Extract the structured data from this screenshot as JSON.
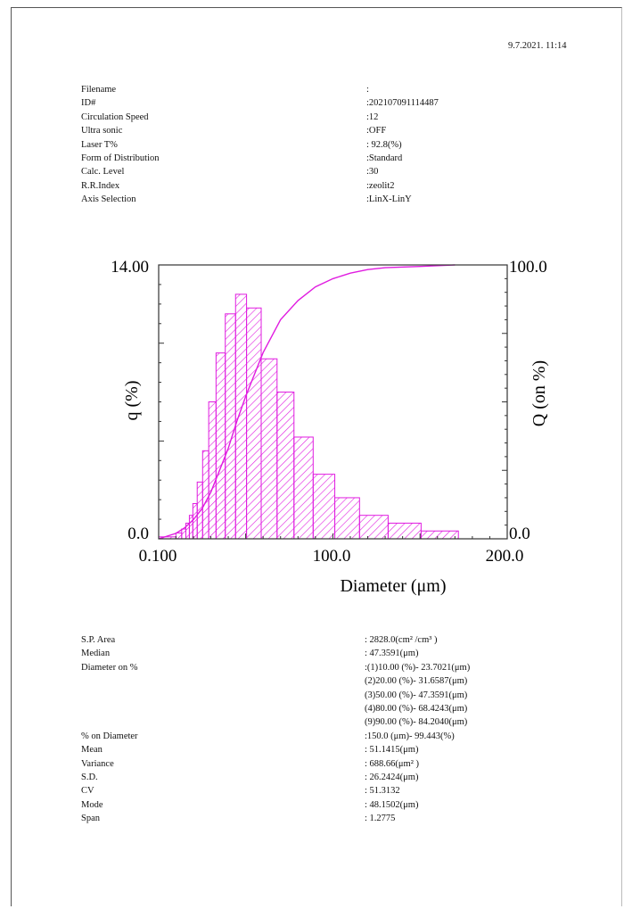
{
  "timestamp": "9.7.2021. 11:14",
  "params": [
    {
      "label": "Filename",
      "value": ":"
    },
    {
      "label": "ID#",
      "value": ":202107091114487"
    },
    {
      "label": "Circulation Speed",
      "value": ":12"
    },
    {
      "label": "Ultra sonic",
      "value": ":OFF"
    },
    {
      "label": "Laser T%",
      "value": ": 92.8(%)"
    },
    {
      "label": "Form of Distribution",
      "value": ":Standard"
    },
    {
      "label": "Calc. Level",
      "value": ":30"
    },
    {
      "label": "R.R.Index",
      "value": ":zeolit2"
    },
    {
      "label": "Axis Selection",
      "value": ":LinX-LinY"
    }
  ],
  "results": [
    {
      "label": "S.P. Area",
      "value": ":  2828.0(cm² /cm³ )"
    },
    {
      "label": "Median",
      "value": ": 47.3591(μm)"
    },
    {
      "label": "Diameter on %",
      "value": ":(1)10.00 (%)-  23.7021(μm)"
    },
    {
      "label": "",
      "value": "  (2)20.00 (%)-  31.6587(μm)"
    },
    {
      "label": "",
      "value": "  (3)50.00 (%)-  47.3591(μm)"
    },
    {
      "label": "",
      "value": "  (4)80.00 (%)-  68.4243(μm)"
    },
    {
      "label": "",
      "value": "  (9)90.00 (%)-  84.2040(μm)"
    },
    {
      "label": "% on Diameter",
      "value": ":150.0 (μm)-  99.443(%)"
    },
    {
      "label": "Mean",
      "value": ": 51.1415(μm)"
    },
    {
      "label": "Variance",
      "value": ":  688.66(μm² )"
    },
    {
      "label": "S.D.",
      "value": ": 26.2424(μm)"
    },
    {
      "label": "CV",
      "value": ": 51.3132"
    },
    {
      "label": "Mode",
      "value": ": 48.1502(μm)"
    },
    {
      "label": "Span",
      "value": ":  1.2775"
    }
  ],
  "colors": {
    "series": "#e01ce0",
    "axis": "#333333"
  },
  "chart_data": {
    "type": "bar",
    "title": "",
    "xlabel": "Diameter (μm)",
    "ylabel": "q (%)",
    "y2label": "Q (on %)",
    "xlim": [
      0.1,
      200.0
    ],
    "ylim": [
      0.0,
      14.0
    ],
    "y2lim": [
      0.0,
      100.0
    ],
    "x_tick_labels": [
      "0.100",
      "100.0",
      "200.0"
    ],
    "y_tick_labels": [
      "0.0",
      "14.00"
    ],
    "y2_tick_labels": [
      "0.0",
      "100.0"
    ],
    "bins": [
      {
        "lo": 0.1,
        "hi": 10,
        "q": 0.1
      },
      {
        "lo": 10,
        "hi": 13.3,
        "q": 0.3
      },
      {
        "lo": 13.3,
        "hi": 15.7,
        "q": 0.5
      },
      {
        "lo": 15.7,
        "hi": 17.7,
        "q": 0.8
      },
      {
        "lo": 17.7,
        "hi": 19.7,
        "q": 1.2
      },
      {
        "lo": 19.7,
        "hi": 22.2,
        "q": 1.8
      },
      {
        "lo": 22.2,
        "hi": 25.3,
        "q": 2.9
      },
      {
        "lo": 25.3,
        "hi": 28.8,
        "q": 4.5
      },
      {
        "lo": 28.8,
        "hi": 33.0,
        "q": 7.0
      },
      {
        "lo": 33.0,
        "hi": 38.3,
        "q": 9.5
      },
      {
        "lo": 38.3,
        "hi": 44.2,
        "q": 11.5
      },
      {
        "lo": 44.2,
        "hi": 50.5,
        "q": 12.5
      },
      {
        "lo": 50.5,
        "hi": 58.9,
        "q": 11.8
      },
      {
        "lo": 58.9,
        "hi": 68.0,
        "q": 9.2
      },
      {
        "lo": 68.0,
        "hi": 77.7,
        "q": 7.5
      },
      {
        "lo": 77.7,
        "hi": 88.7,
        "q": 5.2
      },
      {
        "lo": 88.7,
        "hi": 101.1,
        "q": 3.3
      },
      {
        "lo": 101.1,
        "hi": 115.3,
        "q": 2.1
      },
      {
        "lo": 115.3,
        "hi": 131.7,
        "q": 1.2
      },
      {
        "lo": 131.7,
        "hi": 150.6,
        "q": 0.8
      },
      {
        "lo": 150.6,
        "hi": 172.0,
        "q": 0.4
      }
    ],
    "cumulative": {
      "x": [
        0.1,
        10,
        15,
        20,
        25,
        30,
        35,
        40,
        45,
        50,
        55,
        60,
        70,
        80,
        90,
        100,
        110,
        120,
        130,
        150,
        170
      ],
      "y": [
        0,
        2,
        4,
        7,
        11,
        17,
        25,
        33,
        43,
        52,
        60,
        68,
        80,
        87,
        92,
        95,
        97,
        98.3,
        99.0,
        99.44,
        100
      ]
    }
  }
}
